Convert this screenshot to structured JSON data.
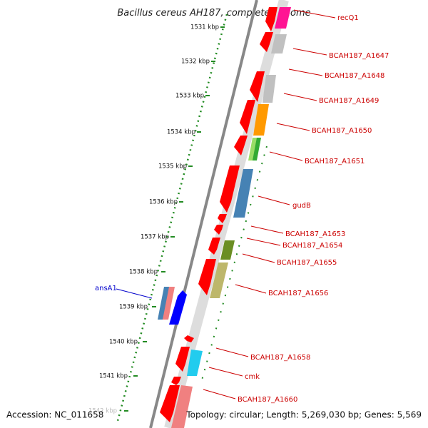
{
  "header": {
    "title": "Bacillus cereus AH187, complete genome"
  },
  "footer": {
    "accession": "Accession: NC_011658",
    "topology": "Topology: circular; Length: 5,269,030 bp; Genes: 5,569"
  },
  "ruler": {
    "ticks": [
      {
        "label": "1531 kbp"
      },
      {
        "label": "1532 kbp"
      },
      {
        "label": "1533 kbp"
      },
      {
        "label": "1534 kbp"
      },
      {
        "label": "1535 kbp"
      },
      {
        "label": "1536 kbp"
      },
      {
        "label": "1537 kbp"
      },
      {
        "label": "1538 kbp"
      },
      {
        "label": "1539 kbp"
      },
      {
        "label": "1540 kbp"
      },
      {
        "label": "1541 kbp"
      },
      {
        "label": "1542 kbp"
      }
    ]
  },
  "labels": [
    {
      "text": "recQ1",
      "color": "#cc0000"
    },
    {
      "text": "BCAH187_A1647",
      "color": "#cc0000"
    },
    {
      "text": "BCAH187_A1648",
      "color": "#cc0000"
    },
    {
      "text": "BCAH187_A1649",
      "color": "#cc0000"
    },
    {
      "text": "BCAH187_A1650",
      "color": "#cc0000"
    },
    {
      "text": "BCAH187_A1651",
      "color": "#cc0000"
    },
    {
      "text": "gudB",
      "color": "#cc0000"
    },
    {
      "text": "BCAH187_A1653",
      "color": "#cc0000"
    },
    {
      "text": "BCAH187_A1654",
      "color": "#cc0000"
    },
    {
      "text": "BCAH187_A1655",
      "color": "#cc0000"
    },
    {
      "text": "BCAH187_A1656",
      "color": "#cc0000"
    },
    {
      "text": "BCAH187_A1658",
      "color": "#cc0000"
    },
    {
      "text": "cmk",
      "color": "#cc0000"
    },
    {
      "text": "BCAH187_A1660",
      "color": "#cc0000"
    },
    {
      "text": "ansA1",
      "color": "#0000cc"
    }
  ],
  "colors": {
    "backbone": "#888888",
    "ruler": "#228b22",
    "cds": "#ff0000",
    "pink": "#ff1493",
    "lightpink": "#ffb6c1",
    "gray": "#c0c0c0",
    "orange": "#ff9900",
    "green": "#33aa33",
    "lightgreen": "#99dd66",
    "steelblue": "#4682b4",
    "olive": "#6b8e23",
    "khaki": "#bdb76b",
    "cyan": "#22ccee",
    "blue": "#0000ff"
  }
}
